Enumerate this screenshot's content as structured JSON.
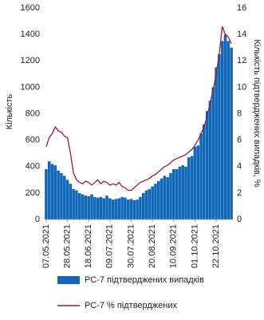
{
  "chart_data": {
    "type": "bar",
    "ylabel": "Кількість",
    "y2label": "Кількість підтверджених випадків, %",
    "x": [
      "07.05.2021",
      "10.05.2021",
      "13.05.2021",
      "16.05.2021",
      "19.05.2021",
      "22.05.2021",
      "25.05.2021",
      "28.05.2021",
      "31.05.2021",
      "03.06.2021",
      "06.06.2021",
      "09.06.2021",
      "12.06.2021",
      "15.06.2021",
      "18.06.2021",
      "21.06.2021",
      "24.06.2021",
      "27.06.2021",
      "30.06.2021",
      "03.07.2021",
      "06.07.2021",
      "09.07.2021",
      "12.07.2021",
      "15.07.2021",
      "18.07.2021",
      "21.07.2021",
      "24.07.2021",
      "27.07.2021",
      "30.07.2021",
      "02.08.2021",
      "05.08.2021",
      "08.08.2021",
      "11.08.2021",
      "14.08.2021",
      "17.08.2021",
      "20.08.2021",
      "23.08.2021",
      "26.08.2021",
      "29.08.2021",
      "01.09.2021",
      "04.09.2021",
      "07.09.2021",
      "10.09.2021",
      "13.09.2021",
      "16.09.2021",
      "19.09.2021",
      "22.09.2021",
      "25.09.2021",
      "28.09.2021",
      "01.10.2021",
      "04.10.2021",
      "07.10.2021",
      "10.10.2021",
      "13.10.2021",
      "16.10.2021",
      "19.10.2021",
      "22.10.2021",
      "25.10.2021",
      "28.10.2021",
      "31.10.2021",
      "03.11.2021",
      "06.11.2021"
    ],
    "xticks": [
      "07.05.2021",
      "28.05.2021",
      "18.06.2021",
      "09.07.2021",
      "30.07.2021",
      "20.08.2021",
      "10.09.2021",
      "01.10.2021",
      "22.10.2021"
    ],
    "series": [
      {
        "name": "РС-7 підтверджених випадків",
        "type": "bar",
        "color": "#1168b8",
        "values": [
          380,
          440,
          420,
          410,
          370,
          350,
          330,
          300,
          270,
          230,
          220,
          200,
          190,
          180,
          175,
          190,
          170,
          165,
          170,
          160,
          180,
          160,
          150,
          155,
          160,
          170,
          165,
          150,
          155,
          145,
          150,
          170,
          200,
          220,
          230,
          250,
          270,
          290,
          310,
          330,
          320,
          350,
          380,
          380,
          400,
          410,
          400,
          470,
          480,
          550,
          560,
          650,
          720,
          820,
          900,
          1000,
          1150,
          1250,
          1350,
          1400,
          1350,
          1300
        ]
      },
      {
        "name": "РС-7 % підтверджених",
        "type": "line",
        "axis": "y2",
        "color": "#9b1b35",
        "values": [
          5.5,
          6.2,
          6.5,
          7.0,
          6.7,
          6.6,
          6.3,
          6.2,
          5.0,
          3.5,
          3.0,
          2.8,
          2.7,
          2.9,
          2.8,
          2.6,
          2.8,
          3.0,
          2.7,
          2.9,
          2.8,
          2.6,
          2.7,
          2.6,
          2.8,
          2.5,
          2.4,
          2.2,
          2.2,
          2.4,
          2.6,
          2.8,
          2.9,
          3.0,
          3.1,
          3.3,
          3.4,
          3.6,
          3.8,
          4.0,
          4.1,
          4.3,
          4.5,
          4.6,
          4.7,
          4.8,
          4.9,
          5.1,
          5.3,
          5.6,
          6.0,
          6.5,
          7.0,
          7.8,
          8.8,
          9.8,
          11.0,
          12.5,
          14.6,
          14.0,
          13.8,
          13.3
        ]
      }
    ],
    "ylim": [
      0,
      1600
    ],
    "yticks": [
      0,
      200,
      400,
      600,
      800,
      1000,
      1200,
      1400,
      1600
    ],
    "y2lim": [
      0,
      16
    ],
    "y2ticks": [
      0,
      2,
      4,
      6,
      8,
      10,
      12,
      14,
      16
    ]
  }
}
